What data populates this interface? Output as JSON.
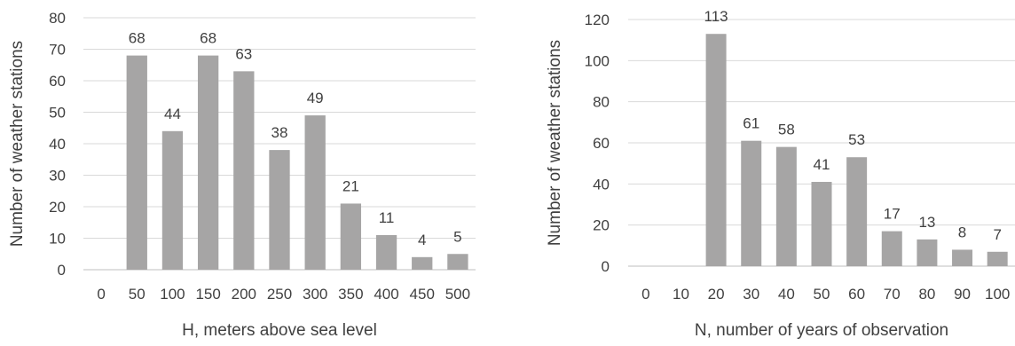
{
  "colors": {
    "bar": "#a6a5a5",
    "grid": "#d9d9d9",
    "axis": "#bfbfbf",
    "text": "#404040"
  },
  "chart_data": [
    {
      "type": "bar",
      "categories": [
        "0",
        "50",
        "100",
        "150",
        "200",
        "250",
        "300",
        "350",
        "400",
        "450",
        "500"
      ],
      "values": [
        0,
        68,
        44,
        68,
        63,
        38,
        49,
        21,
        11,
        4,
        5
      ],
      "data_labels": [
        "",
        "68",
        "44",
        "68",
        "63",
        "38",
        "49",
        "21",
        "11",
        "4",
        "5"
      ],
      "title": "",
      "xlabel": "H, meters above sea level",
      "ylabel": "Number of weather stations",
      "ylim": [
        0,
        80
      ],
      "yticks": [
        0,
        10,
        20,
        30,
        40,
        50,
        60,
        70,
        80
      ],
      "grid": true
    },
    {
      "type": "bar",
      "categories": [
        "0",
        "10",
        "20",
        "30",
        "40",
        "50",
        "60",
        "70",
        "80",
        "90",
        "100"
      ],
      "values": [
        0,
        0,
        113,
        61,
        58,
        41,
        53,
        17,
        13,
        8,
        7
      ],
      "data_labels": [
        "",
        "",
        "113",
        "61",
        "58",
        "41",
        "53",
        "17",
        "13",
        "8",
        "7"
      ],
      "title": "",
      "xlabel": "N, number of years of observation",
      "ylabel": "Number of weather stations",
      "ylim": [
        0,
        120
      ],
      "yticks": [
        0,
        20,
        40,
        60,
        80,
        100,
        120
      ],
      "grid": true
    }
  ]
}
